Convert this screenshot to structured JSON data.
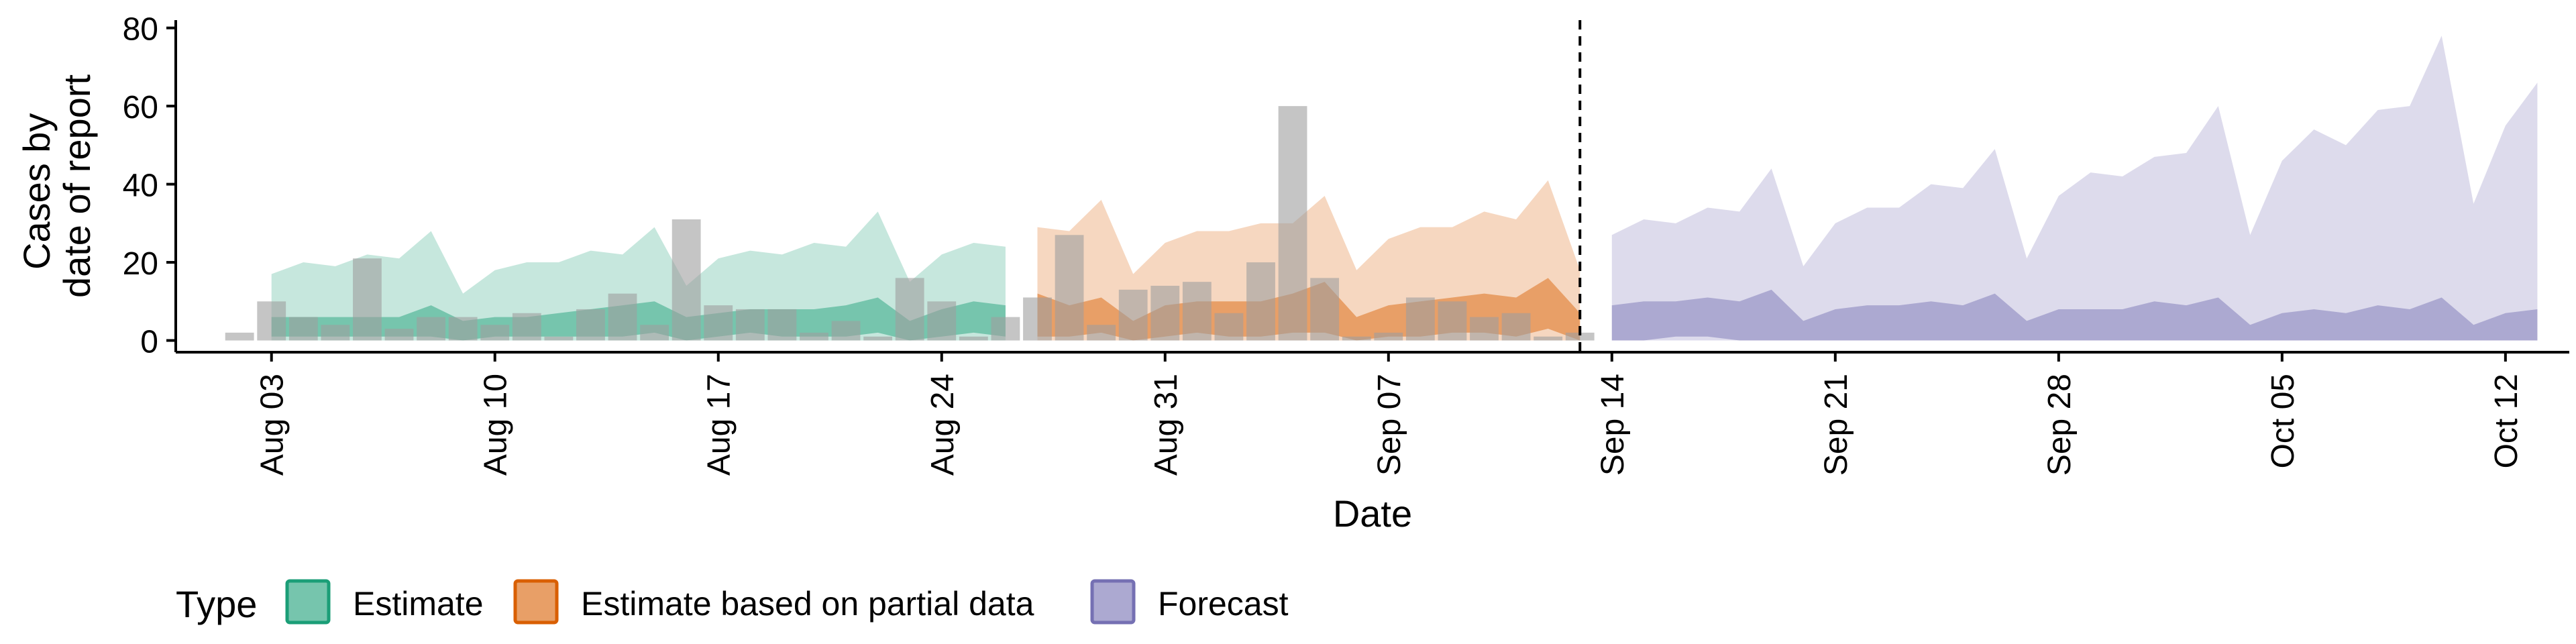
{
  "chart_data": {
    "type": "area",
    "xlabel": "Date",
    "ylabel_lines": [
      "Cases by",
      "date of report"
    ],
    "ylim": [
      -3,
      82
    ],
    "yticks": [
      0,
      20,
      40,
      60,
      80
    ],
    "x_start": "2020-07-31",
    "x_end": "2020-10-14",
    "xticks": [
      {
        "date": "2020-08-03",
        "label": "Aug 03"
      },
      {
        "date": "2020-08-10",
        "label": "Aug 10"
      },
      {
        "date": "2020-08-17",
        "label": "Aug 17"
      },
      {
        "date": "2020-08-24",
        "label": "Aug 24"
      },
      {
        "date": "2020-08-31",
        "label": "Aug 31"
      },
      {
        "date": "2020-09-07",
        "label": "Sep 07"
      },
      {
        "date": "2020-09-14",
        "label": "Sep 14"
      },
      {
        "date": "2020-09-21",
        "label": "Sep 21"
      },
      {
        "date": "2020-09-28",
        "label": "Sep 28"
      },
      {
        "date": "2020-10-05",
        "label": "Oct 05"
      },
      {
        "date": "2020-10-12",
        "label": "Oct 12"
      }
    ],
    "cutoff_date": "2020-09-13",
    "reported_cases": {
      "start_date": "2020-08-02",
      "values": [
        2,
        10,
        6,
        4,
        21,
        3,
        6,
        6,
        4,
        7,
        1,
        8,
        12,
        4,
        31,
        9,
        8,
        8,
        2,
        5,
        1,
        16,
        10,
        1,
        6,
        11,
        27,
        4,
        13,
        14,
        15,
        7,
        20,
        60,
        16,
        1,
        2,
        11,
        10,
        6,
        7,
        1,
        2
      ]
    },
    "series": [
      {
        "name": "Estimate",
        "color": "#1b9e77",
        "start_date": "2020-08-03",
        "upper_outer": [
          17,
          20,
          19,
          22,
          21,
          28,
          12,
          18,
          20,
          20,
          23,
          22,
          29,
          14,
          21,
          23,
          22,
          25,
          24,
          33,
          15,
          22,
          25,
          24
        ],
        "upper_inner": [
          6,
          6,
          6,
          6,
          6,
          9,
          5,
          6,
          6,
          7,
          8,
          9,
          10,
          6,
          7,
          8,
          8,
          8,
          9,
          11,
          5,
          8,
          10,
          9
        ],
        "lower_inner": [
          1,
          1,
          1,
          1,
          1,
          1,
          0,
          1,
          1,
          1,
          1,
          1,
          2,
          0,
          1,
          2,
          1,
          1,
          1,
          2,
          0,
          1,
          2,
          1
        ],
        "lower_outer": [
          0,
          0,
          0,
          0,
          0,
          0,
          0,
          0,
          0,
          0,
          0,
          0,
          0,
          0,
          0,
          0,
          0,
          0,
          0,
          0,
          0,
          0,
          0,
          0
        ]
      },
      {
        "name": "Estimate based on partial data",
        "color": "#d95f02",
        "start_date": "2020-08-27",
        "upper_outer": [
          29,
          28,
          36,
          17,
          25,
          28,
          28,
          30,
          30,
          37,
          18,
          26,
          29,
          29,
          33,
          31,
          41,
          18
        ],
        "upper_inner": [
          12,
          9,
          11,
          5,
          9,
          10,
          10,
          10,
          12,
          15,
          6,
          9,
          10,
          11,
          12,
          11,
          16,
          7
        ],
        "lower_inner": [
          1,
          1,
          2,
          0,
          1,
          2,
          1,
          1,
          2,
          2,
          0,
          1,
          1,
          2,
          2,
          1,
          3,
          0
        ],
        "lower_outer": [
          0,
          0,
          0,
          0,
          0,
          0,
          0,
          0,
          0,
          0,
          0,
          0,
          0,
          0,
          0,
          0,
          0,
          0
        ]
      },
      {
        "name": "Forecast",
        "color": "#7570b3",
        "start_date": "2020-09-14",
        "upper_outer": [
          27,
          31,
          30,
          34,
          33,
          44,
          19,
          30,
          34,
          34,
          40,
          39,
          49,
          21,
          37,
          43,
          42,
          47,
          48,
          60,
          27,
          46,
          54,
          50,
          59,
          60,
          78,
          35,
          55,
          66
        ],
        "upper_inner": [
          9,
          10,
          10,
          11,
          10,
          13,
          5,
          8,
          9,
          9,
          10,
          9,
          12,
          5,
          8,
          8,
          8,
          10,
          9,
          11,
          4,
          7,
          8,
          7,
          9,
          8,
          11,
          4,
          7,
          8
        ],
        "lower_inner": [
          0,
          0,
          1,
          1,
          0,
          0,
          0,
          0,
          0,
          0,
          0,
          0,
          0,
          0,
          0,
          0,
          0,
          0,
          0,
          0,
          0,
          0,
          0,
          0,
          0,
          0,
          0,
          0,
          0,
          0
        ],
        "lower_outer": [
          0,
          0,
          0,
          0,
          0,
          0,
          0,
          0,
          0,
          0,
          0,
          0,
          0,
          0,
          0,
          0,
          0,
          0,
          0,
          0,
          0,
          0,
          0,
          0,
          0,
          0,
          0,
          0,
          0,
          0
        ]
      }
    ],
    "legend": {
      "title": "Type",
      "position": "bottom",
      "items": [
        "Estimate",
        "Estimate based on partial data",
        "Forecast"
      ]
    },
    "grid": false
  }
}
